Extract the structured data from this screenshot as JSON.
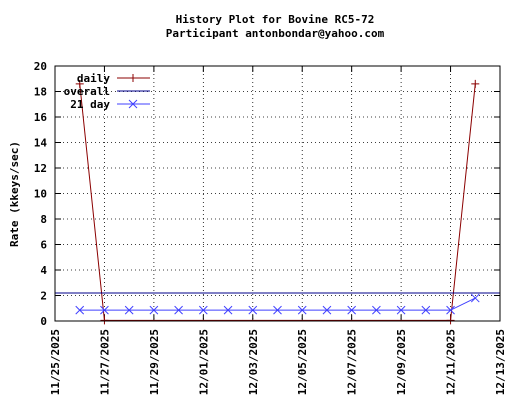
{
  "chart_data": {
    "type": "line",
    "title": "History Plot for Bovine RC5-72",
    "subtitle": "Participant antonbondar@yahoo.com",
    "ylabel": "Rate (kkeys/sec)",
    "xlabel": "",
    "ylim": [
      0,
      20
    ],
    "yticks": [
      "0",
      "2",
      "4",
      "6",
      "8",
      "10",
      "12",
      "14",
      "16",
      "18",
      "20"
    ],
    "xticks": [
      "11/25/2025",
      "11/27/2025",
      "11/29/2025",
      "12/01/2025",
      "12/03/2025",
      "12/05/2025",
      "12/07/2025",
      "12/09/2025",
      "12/11/2025",
      "12/13/2025"
    ],
    "xlim": [
      "11/25/2025",
      "12/13/2025"
    ],
    "grid": true,
    "legend_position": "top-left",
    "series": [
      {
        "name": "daily",
        "color": "#8b0000",
        "marker": "plus",
        "points": [
          [
            "11/26/2025",
            18.6
          ],
          [
            "11/27/2025",
            0.05
          ],
          [
            "12/11/2025",
            0.05
          ],
          [
            "12/12/2025",
            18.6
          ]
        ]
      },
      {
        "name": "overall",
        "color": "#00008b",
        "marker": "none",
        "points": [
          [
            "11/25/2025",
            2.2
          ],
          [
            "12/13/2025",
            2.2
          ]
        ]
      },
      {
        "name": "21 day",
        "color": "#4040ff",
        "marker": "x",
        "points": [
          [
            "11/26/2025",
            0.85
          ],
          [
            "11/27/2025",
            0.85
          ],
          [
            "11/28/2025",
            0.85
          ],
          [
            "11/29/2025",
            0.85
          ],
          [
            "11/30/2025",
            0.85
          ],
          [
            "12/01/2025",
            0.85
          ],
          [
            "12/02/2025",
            0.85
          ],
          [
            "12/03/2025",
            0.85
          ],
          [
            "12/04/2025",
            0.85
          ],
          [
            "12/05/2025",
            0.85
          ],
          [
            "12/06/2025",
            0.85
          ],
          [
            "12/07/2025",
            0.85
          ],
          [
            "12/08/2025",
            0.85
          ],
          [
            "12/09/2025",
            0.85
          ],
          [
            "12/10/2025",
            0.85
          ],
          [
            "12/11/2025",
            0.85
          ],
          [
            "12/12/2025",
            1.8
          ]
        ]
      }
    ]
  }
}
